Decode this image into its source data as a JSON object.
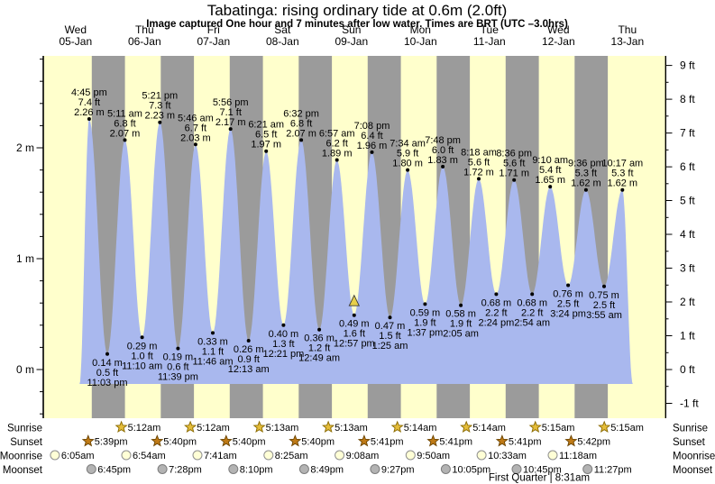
{
  "colors": {
    "day_band": "#ffffcc",
    "night_band": "#9b9b9b",
    "tide_fill": "#a9b8ee",
    "date_red": "#ff2a2a",
    "marker_yellow": "#e7cf4a",
    "sunrise_star": "#e5bd3a",
    "sunrise_star_edge": "#8a6a00",
    "sunset_star": "#bf7a16",
    "sunset_star_edge": "#6b4400",
    "moonrise_circle": "#ffffd6",
    "moonrise_circle_edge": "#8f8f8f",
    "moonset_circle": "#b3b3b3",
    "moonset_circle_edge": "#7d7d7d",
    "axis_color": "#000000"
  },
  "chart_data": {
    "type": "area",
    "title": "Tabatinga: rising  ordinary tide at 0.6m (2.0ft)",
    "subtitle": "Image captured One hour and 7 minutes after low water. Times are BRT (UTC –3.0hrs)",
    "y_axis_left": {
      "unit": "m",
      "major": [
        {
          "value": 2,
          "label": "2 m"
        },
        {
          "value": 1,
          "label": "1 m"
        },
        {
          "value": 0,
          "label": "0 m"
        }
      ],
      "minor_step_m": 0.2,
      "range_m": [
        -0.45,
        2.83
      ]
    },
    "y_axis_right": {
      "unit": "ft",
      "major": [
        {
          "value": 9,
          "label": "9 ft"
        },
        {
          "value": 8,
          "label": "8 ft"
        },
        {
          "value": 7,
          "label": "7 ft"
        },
        {
          "value": 6,
          "label": "6 ft"
        },
        {
          "value": 5,
          "label": "5 ft"
        },
        {
          "value": 4,
          "label": "4 ft"
        },
        {
          "value": 3,
          "label": "3 ft"
        },
        {
          "value": 2,
          "label": "2 ft"
        },
        {
          "value": 1,
          "label": "1 ft"
        },
        {
          "value": 0,
          "label": "0 ft"
        },
        {
          "value": -1,
          "label": "-1 ft"
        }
      ],
      "minor_step_ft": 0.5
    },
    "x_axis": {
      "days": [
        {
          "name": "Wed",
          "date": "05-Jan"
        },
        {
          "name": "Thu",
          "date": "06-Jan"
        },
        {
          "name": "Fri",
          "date": "07-Jan"
        },
        {
          "name": "Sat",
          "date": "08-Jan"
        },
        {
          "name": "Sun",
          "date": "09-Jan"
        },
        {
          "name": "Mon",
          "date": "10-Jan"
        },
        {
          "name": "Tue",
          "date": "11-Jan"
        },
        {
          "name": "Wed",
          "date": "12-Jan"
        },
        {
          "name": "Thu",
          "date": "13-Jan"
        }
      ]
    },
    "night_band_hours": {
      "sunset": 17.67,
      "sunrise_next": 29.22,
      "nights": 8
    },
    "edge_anchors": {
      "start_hours": 13.4,
      "end_hours": 205.9,
      "edge_m": -0.13
    },
    "tide_events": [
      {
        "kind": "high",
        "time": "4:45 pm",
        "ft_label": "7.4 ft",
        "m_label": "2.26 m",
        "height_m": 2.26,
        "hours": 16.75
      },
      {
        "kind": "low",
        "time": "11:03 pm",
        "ft_label": "0.5 ft",
        "m_label": "0.14 m",
        "height_m": 0.14,
        "hours": 23.05
      },
      {
        "kind": "high",
        "time": "5:11 am",
        "ft_label": "6.8 ft",
        "m_label": "2.07 m",
        "height_m": 2.07,
        "hours": 29.18
      },
      {
        "kind": "low",
        "time": "11:10 am",
        "ft_label": "1.0 ft",
        "m_label": "0.29 m",
        "height_m": 0.29,
        "hours": 35.17
      },
      {
        "kind": "high",
        "time": "5:21 pm",
        "ft_label": "7.3 ft",
        "m_label": "2.23 m",
        "height_m": 2.23,
        "hours": 41.35
      },
      {
        "kind": "low",
        "time": "11:39 pm",
        "ft_label": "0.6 ft",
        "m_label": "0.19 m",
        "height_m": 0.19,
        "hours": 47.65
      },
      {
        "kind": "high",
        "time": "5:46 am",
        "ft_label": "6.7 ft",
        "m_label": "2.03 m",
        "height_m": 2.03,
        "hours": 53.77
      },
      {
        "kind": "low",
        "time": "11:46 am",
        "ft_label": "1.1 ft",
        "m_label": "0.33 m",
        "height_m": 0.33,
        "hours": 59.77
      },
      {
        "kind": "high",
        "time": "5:56 pm",
        "ft_label": "7.1 ft",
        "m_label": "2.17 m",
        "height_m": 2.17,
        "hours": 65.93
      },
      {
        "kind": "low",
        "time": "12:13 am",
        "ft_label": "0.9 ft",
        "m_label": "0.26 m",
        "height_m": 0.26,
        "hours": 72.22
      },
      {
        "kind": "high",
        "time": "6:21 am",
        "ft_label": "6.5 ft",
        "m_label": "1.97 m",
        "height_m": 1.97,
        "hours": 78.35
      },
      {
        "kind": "low",
        "time": "12:21 pm",
        "ft_label": "1.3 ft",
        "m_label": "0.40 m",
        "height_m": 0.4,
        "hours": 84.35
      },
      {
        "kind": "high",
        "time": "6:32 pm",
        "ft_label": "6.8 ft",
        "m_label": "2.07 m",
        "height_m": 2.07,
        "hours": 90.53
      },
      {
        "kind": "low",
        "time": "12:49 am",
        "ft_label": "1.2 ft",
        "m_label": "0.36 m",
        "height_m": 0.36,
        "hours": 96.82
      },
      {
        "kind": "high",
        "time": "6:57 am",
        "ft_label": "6.2 ft",
        "m_label": "1.89 m",
        "height_m": 1.89,
        "hours": 102.95
      },
      {
        "kind": "low",
        "time": "12:57 pm",
        "ft_label": "1.6 ft",
        "m_label": "0.49 m",
        "height_m": 0.49,
        "hours": 108.95,
        "marker": true
      },
      {
        "kind": "high",
        "time": "7:08 pm",
        "ft_label": "6.4 ft",
        "m_label": "1.96 m",
        "height_m": 1.96,
        "hours": 115.13
      },
      {
        "kind": "low",
        "time": "1:25 am",
        "ft_label": "1.5 ft",
        "m_label": "0.47 m",
        "height_m": 0.47,
        "hours": 121.42
      },
      {
        "kind": "high",
        "time": "7:34 am",
        "ft_label": "5.9 ft",
        "m_label": "1.80 m",
        "height_m": 1.8,
        "hours": 127.57
      },
      {
        "kind": "low",
        "time": "1:37 pm",
        "ft_label": "1.9 ft",
        "m_label": "0.59 m",
        "height_m": 0.59,
        "hours": 133.62
      },
      {
        "kind": "high",
        "time": "7:48 pm",
        "ft_label": "6.0 ft",
        "m_label": "1.83 m",
        "height_m": 1.83,
        "hours": 139.8
      },
      {
        "kind": "low",
        "time": "2:05 am",
        "ft_label": "1.9 ft",
        "m_label": "0.58 m",
        "height_m": 0.58,
        "hours": 146.08
      },
      {
        "kind": "high",
        "time": "8:18 am",
        "ft_label": "5.6 ft",
        "m_label": "1.72 m",
        "height_m": 1.72,
        "hours": 152.3
      },
      {
        "kind": "low",
        "time": "2:24 pm",
        "ft_label": "2.2 ft",
        "m_label": "0.68 m",
        "height_m": 0.68,
        "hours": 158.4
      },
      {
        "kind": "high",
        "time": "8:36 pm",
        "ft_label": "5.6 ft",
        "m_label": "1.71 m",
        "height_m": 1.71,
        "hours": 164.6
      },
      {
        "kind": "low",
        "time": "2:54 am",
        "ft_label": "2.2 ft",
        "m_label": "0.68 m",
        "height_m": 0.68,
        "hours": 170.9
      },
      {
        "kind": "high",
        "time": "9:10 am",
        "ft_label": "5.4 ft",
        "m_label": "1.65 m",
        "height_m": 1.65,
        "hours": 177.17
      },
      {
        "kind": "low",
        "time": "3:24 pm",
        "ft_label": "2.5 ft",
        "m_label": "0.76 m",
        "height_m": 0.76,
        "hours": 183.4
      },
      {
        "kind": "high",
        "time": "9:36 pm",
        "ft_label": "5.3 ft",
        "m_label": "1.62 m",
        "height_m": 1.62,
        "hours": 189.6
      },
      {
        "kind": "low",
        "time": "3:55 am",
        "ft_label": "2.5 ft",
        "m_label": "0.75 m",
        "height_m": 0.75,
        "hours": 195.92
      },
      {
        "kind": "high",
        "time": "10:17 am",
        "ft_label": "5.3 ft",
        "m_label": "1.62 m",
        "height_m": 1.62,
        "hours": 202.28
      }
    ]
  },
  "astro": {
    "rows": [
      {
        "label": "Sunrise",
        "icon": "sunrise-star",
        "entries": [
          {
            "time": "5:12am",
            "hours": 29.2
          },
          {
            "time": "5:12am",
            "hours": 53.2
          },
          {
            "time": "5:13am",
            "hours": 77.22
          },
          {
            "time": "5:13am",
            "hours": 101.22
          },
          {
            "time": "5:14am",
            "hours": 125.23
          },
          {
            "time": "5:14am",
            "hours": 149.23
          },
          {
            "time": "5:15am",
            "hours": 173.25
          },
          {
            "time": "5:15am",
            "hours": 197.25
          }
        ]
      },
      {
        "label": "Sunset",
        "icon": "sunset-star",
        "entries": [
          {
            "time": "5:39pm",
            "hours": 17.65
          },
          {
            "time": "5:40pm",
            "hours": 41.67
          },
          {
            "time": "5:40pm",
            "hours": 65.67
          },
          {
            "time": "5:40pm",
            "hours": 89.67
          },
          {
            "time": "5:41pm",
            "hours": 113.68
          },
          {
            "time": "5:41pm",
            "hours": 137.68
          },
          {
            "time": "5:41pm",
            "hours": 161.68
          },
          {
            "time": "5:42pm",
            "hours": 185.7
          }
        ]
      },
      {
        "label": "Moonrise",
        "icon": "moonrise-circle",
        "entries": [
          {
            "time": "6:05am",
            "hours": 6.08
          },
          {
            "time": "6:54am",
            "hours": 30.9
          },
          {
            "time": "7:41am",
            "hours": 55.68
          },
          {
            "time": "8:25am",
            "hours": 80.42
          },
          {
            "time": "9:08am",
            "hours": 105.13
          },
          {
            "time": "9:50am",
            "hours": 129.83
          },
          {
            "time": "10:33am",
            "hours": 154.55
          },
          {
            "time": "11:18am",
            "hours": 179.3
          }
        ]
      },
      {
        "label": "Moonset",
        "icon": "moonset-circle",
        "entries": [
          {
            "time": "6:45pm",
            "hours": 18.75
          },
          {
            "time": "7:28pm",
            "hours": 43.47
          },
          {
            "time": "8:10pm",
            "hours": 68.17
          },
          {
            "time": "8:49pm",
            "hours": 92.82
          },
          {
            "time": "9:27pm",
            "hours": 117.45
          },
          {
            "time": "10:05pm",
            "hours": 142.08
          },
          {
            "time": "10:45pm",
            "hours": 166.75
          },
          {
            "time": "11:27pm",
            "hours": 191.45
          }
        ]
      }
    ],
    "footnote": "First Quarter | 8:31am"
  }
}
